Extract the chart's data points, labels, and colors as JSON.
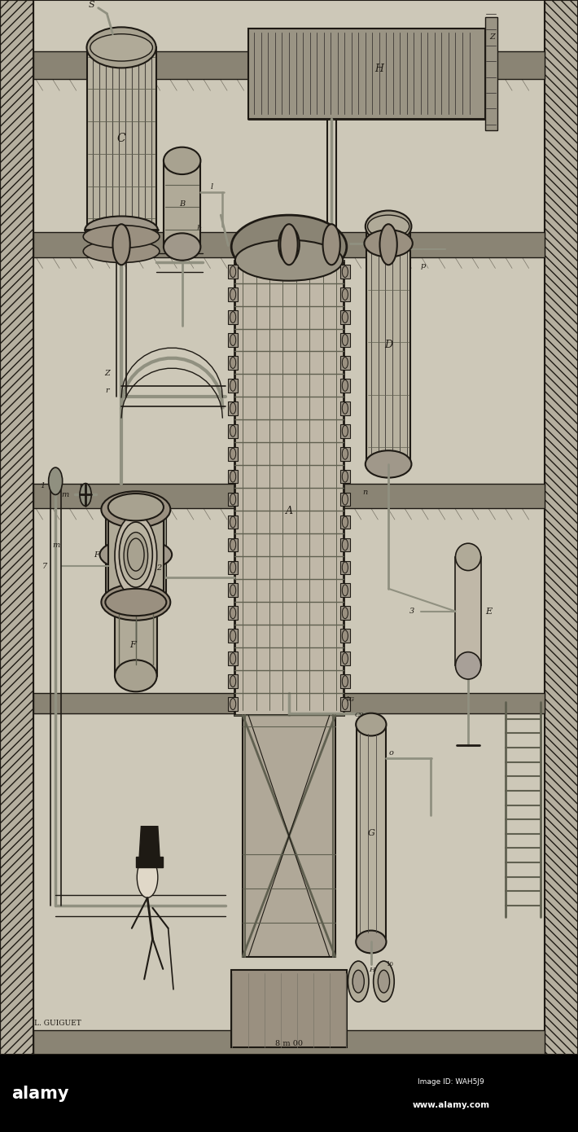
{
  "bg_color": "#cdc8b8",
  "paper_color": "#d0cbbf",
  "line_color": "#1e1a14",
  "dark_gray": "#4a4540",
  "mid_gray": "#7a7568",
  "light_gray": "#b8b2a4",
  "metal_dark": "#606050",
  "metal_mid": "#909080",
  "metal_light": "#c0baa8",
  "hatch_bg": "#b0aa98",
  "floor_color": "#7a7460",
  "watermark_bg": "#000000",
  "watermark_fg": "#ffffff",
  "alamy_text": "alamy",
  "image_id": "Image ID: WAH5J9",
  "website": "www.alamy.com",
  "fig_width": 7.1,
  "fig_height": 13.9,
  "dpi": 100
}
